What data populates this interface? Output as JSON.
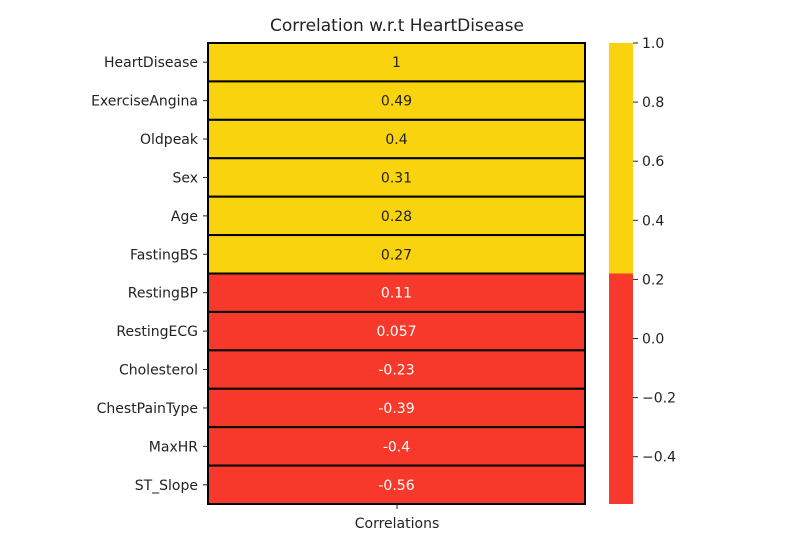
{
  "chart_data": {
    "type": "heatmap",
    "title": "Correlation w.r.t HeartDisease",
    "column": "Correlations",
    "rows": [
      {
        "label": "HeartDisease",
        "value": 1,
        "text": "1"
      },
      {
        "label": "ExerciseAngina",
        "value": 0.49,
        "text": "0.49"
      },
      {
        "label": "Oldpeak",
        "value": 0.4,
        "text": "0.4"
      },
      {
        "label": "Sex",
        "value": 0.31,
        "text": "0.31"
      },
      {
        "label": "Age",
        "value": 0.28,
        "text": "0.28"
      },
      {
        "label": "FastingBS",
        "value": 0.27,
        "text": "0.27"
      },
      {
        "label": "RestingBP",
        "value": 0.11,
        "text": "0.11"
      },
      {
        "label": "RestingECG",
        "value": 0.057,
        "text": "0.057"
      },
      {
        "label": "Cholesterol",
        "value": -0.23,
        "text": "-0.23"
      },
      {
        "label": "ChestPainType",
        "value": -0.39,
        "text": "-0.39"
      },
      {
        "label": "MaxHR",
        "value": -0.4,
        "text": "-0.4"
      },
      {
        "label": "ST_Slope",
        "value": -0.56,
        "text": "-0.56"
      }
    ],
    "colormap": {
      "colors": [
        "#f7392b",
        "#fad30f"
      ],
      "threshold": 0.22,
      "vmin": -0.56,
      "vmax": 1.0,
      "ticks": [
        {
          "value": 1.0,
          "label": "1.0"
        },
        {
          "value": 0.8,
          "label": "0.8"
        },
        {
          "value": 0.6,
          "label": "0.6"
        },
        {
          "value": 0.4,
          "label": "0.4"
        },
        {
          "value": 0.2,
          "label": "0.2"
        },
        {
          "value": 0.0,
          "label": "0.0"
        },
        {
          "value": -0.2,
          "label": "−0.2"
        },
        {
          "value": -0.4,
          "label": "−0.4"
        }
      ]
    },
    "cell_text_colors": {
      "light": "#222222",
      "dark": "#ffffff"
    },
    "grid_line_color": "#000000"
  }
}
